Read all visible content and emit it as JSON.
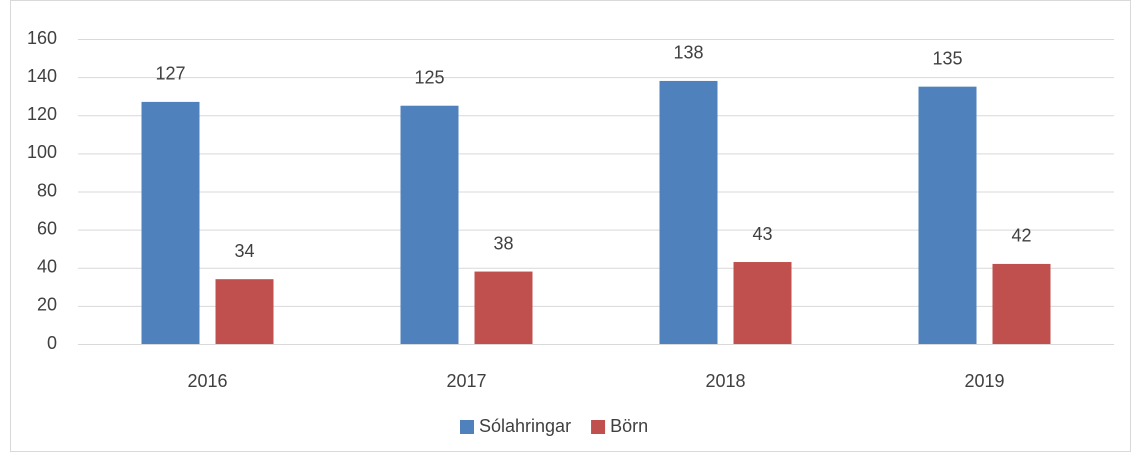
{
  "chart_data": {
    "type": "bar",
    "categories": [
      "2016",
      "2017",
      "2018",
      "2019"
    ],
    "series": [
      {
        "name": "Sólahringar",
        "color": "#4f81bd",
        "values": [
          127,
          125,
          138,
          135
        ]
      },
      {
        "name": "Börn",
        "color": "#c0504d",
        "values": [
          34,
          38,
          43,
          42
        ]
      }
    ],
    "ylim": [
      0,
      160
    ],
    "yticks": [
      0,
      20,
      40,
      60,
      80,
      100,
      120,
      140,
      160
    ],
    "grid": true,
    "legend": "bottom"
  }
}
